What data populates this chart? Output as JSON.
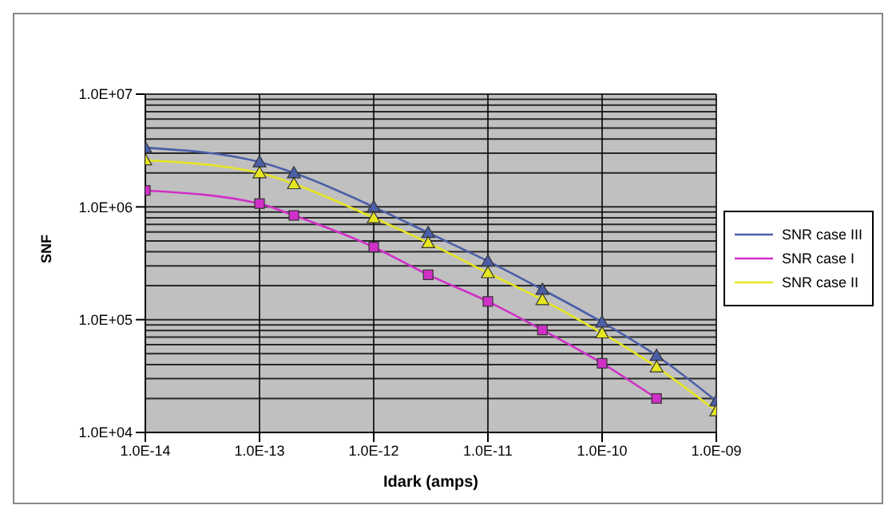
{
  "chart_data": {
    "type": "line",
    "xlabel": "Idark (amps)",
    "ylabel": "SNF",
    "log": "xy",
    "grid": true,
    "legend": "right",
    "xlim": [
      1e-14,
      1e-09
    ],
    "ylim": [
      10000,
      10000000
    ],
    "xticks": [
      {
        "value": 1e-14,
        "label": "1.0E-14"
      },
      {
        "value": 1e-13,
        "label": "1.0E-13"
      },
      {
        "value": 1e-12,
        "label": "1.0E-12"
      },
      {
        "value": 1e-11,
        "label": "1.0E-11"
      },
      {
        "value": 1e-10,
        "label": "1.0E-10"
      },
      {
        "value": 1e-09,
        "label": "1.0E-09"
      }
    ],
    "yticks": [
      {
        "value": 10000,
        "label": "1.0E+04"
      },
      {
        "value": 100000,
        "label": "1.0E+05"
      },
      {
        "value": 1000000,
        "label": "1.0E+06"
      },
      {
        "value": 10000000,
        "label": "1.0E+07"
      }
    ],
    "x": [
      1e-14,
      1e-13,
      2e-13,
      1e-12,
      3e-12,
      1e-11,
      3e-11,
      1e-10,
      3e-10,
      1e-09
    ],
    "series": [
      {
        "name": "SNR case III",
        "color": "#4b5fa8",
        "marker": "triangle",
        "values": [
          3350000,
          2500000,
          2000000,
          1000000,
          590000,
          330000,
          185000,
          95000,
          48000,
          19000
        ]
      },
      {
        "name": "SNR case I",
        "color": "#d030c8",
        "marker": "square",
        "values": [
          1400000,
          1070000,
          840000,
          440000,
          250000,
          145000,
          81000,
          41000,
          20000,
          null
        ]
      },
      {
        "name": "SNR case II",
        "color": "#e6e620",
        "marker": "triangle",
        "values": [
          2600000,
          2000000,
          1600000,
          800000,
          480000,
          260000,
          150000,
          76000,
          38000,
          15500
        ]
      }
    ]
  }
}
